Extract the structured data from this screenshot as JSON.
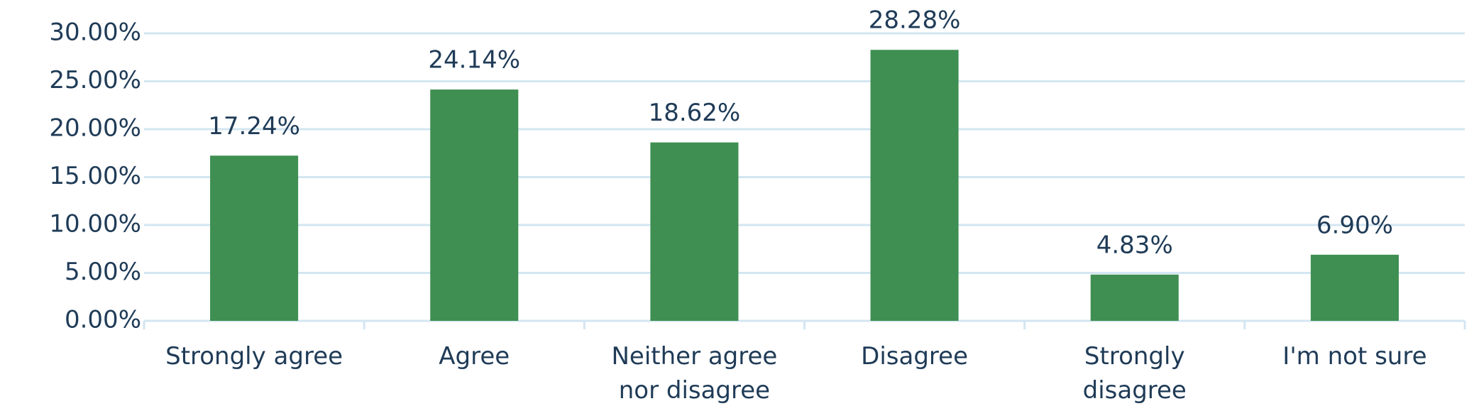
{
  "chart_data": {
    "type": "bar",
    "categories": [
      "Strongly agree",
      "Agree",
      "Neither agree nor disagree",
      "Disagree",
      "Strongly disagree",
      "I'm not sure"
    ],
    "values": [
      17.24,
      24.14,
      18.62,
      28.28,
      4.83,
      6.9
    ],
    "value_labels": [
      "17.24%",
      "24.14%",
      "18.62%",
      "28.28%",
      "4.83%",
      "6.90%"
    ],
    "color": "#3f8f52",
    "ylim": [
      0,
      30
    ],
    "yticks": [
      {
        "value": 0,
        "label": "0.00%"
      },
      {
        "value": 5,
        "label": "5.00%"
      },
      {
        "value": 10,
        "label": "10.00%"
      },
      {
        "value": 15,
        "label": "15.00%"
      },
      {
        "value": 20,
        "label": "20.00%"
      },
      {
        "value": 25,
        "label": "25.00%"
      },
      {
        "value": 30,
        "label": "30.00%"
      }
    ],
    "grid": true
  }
}
